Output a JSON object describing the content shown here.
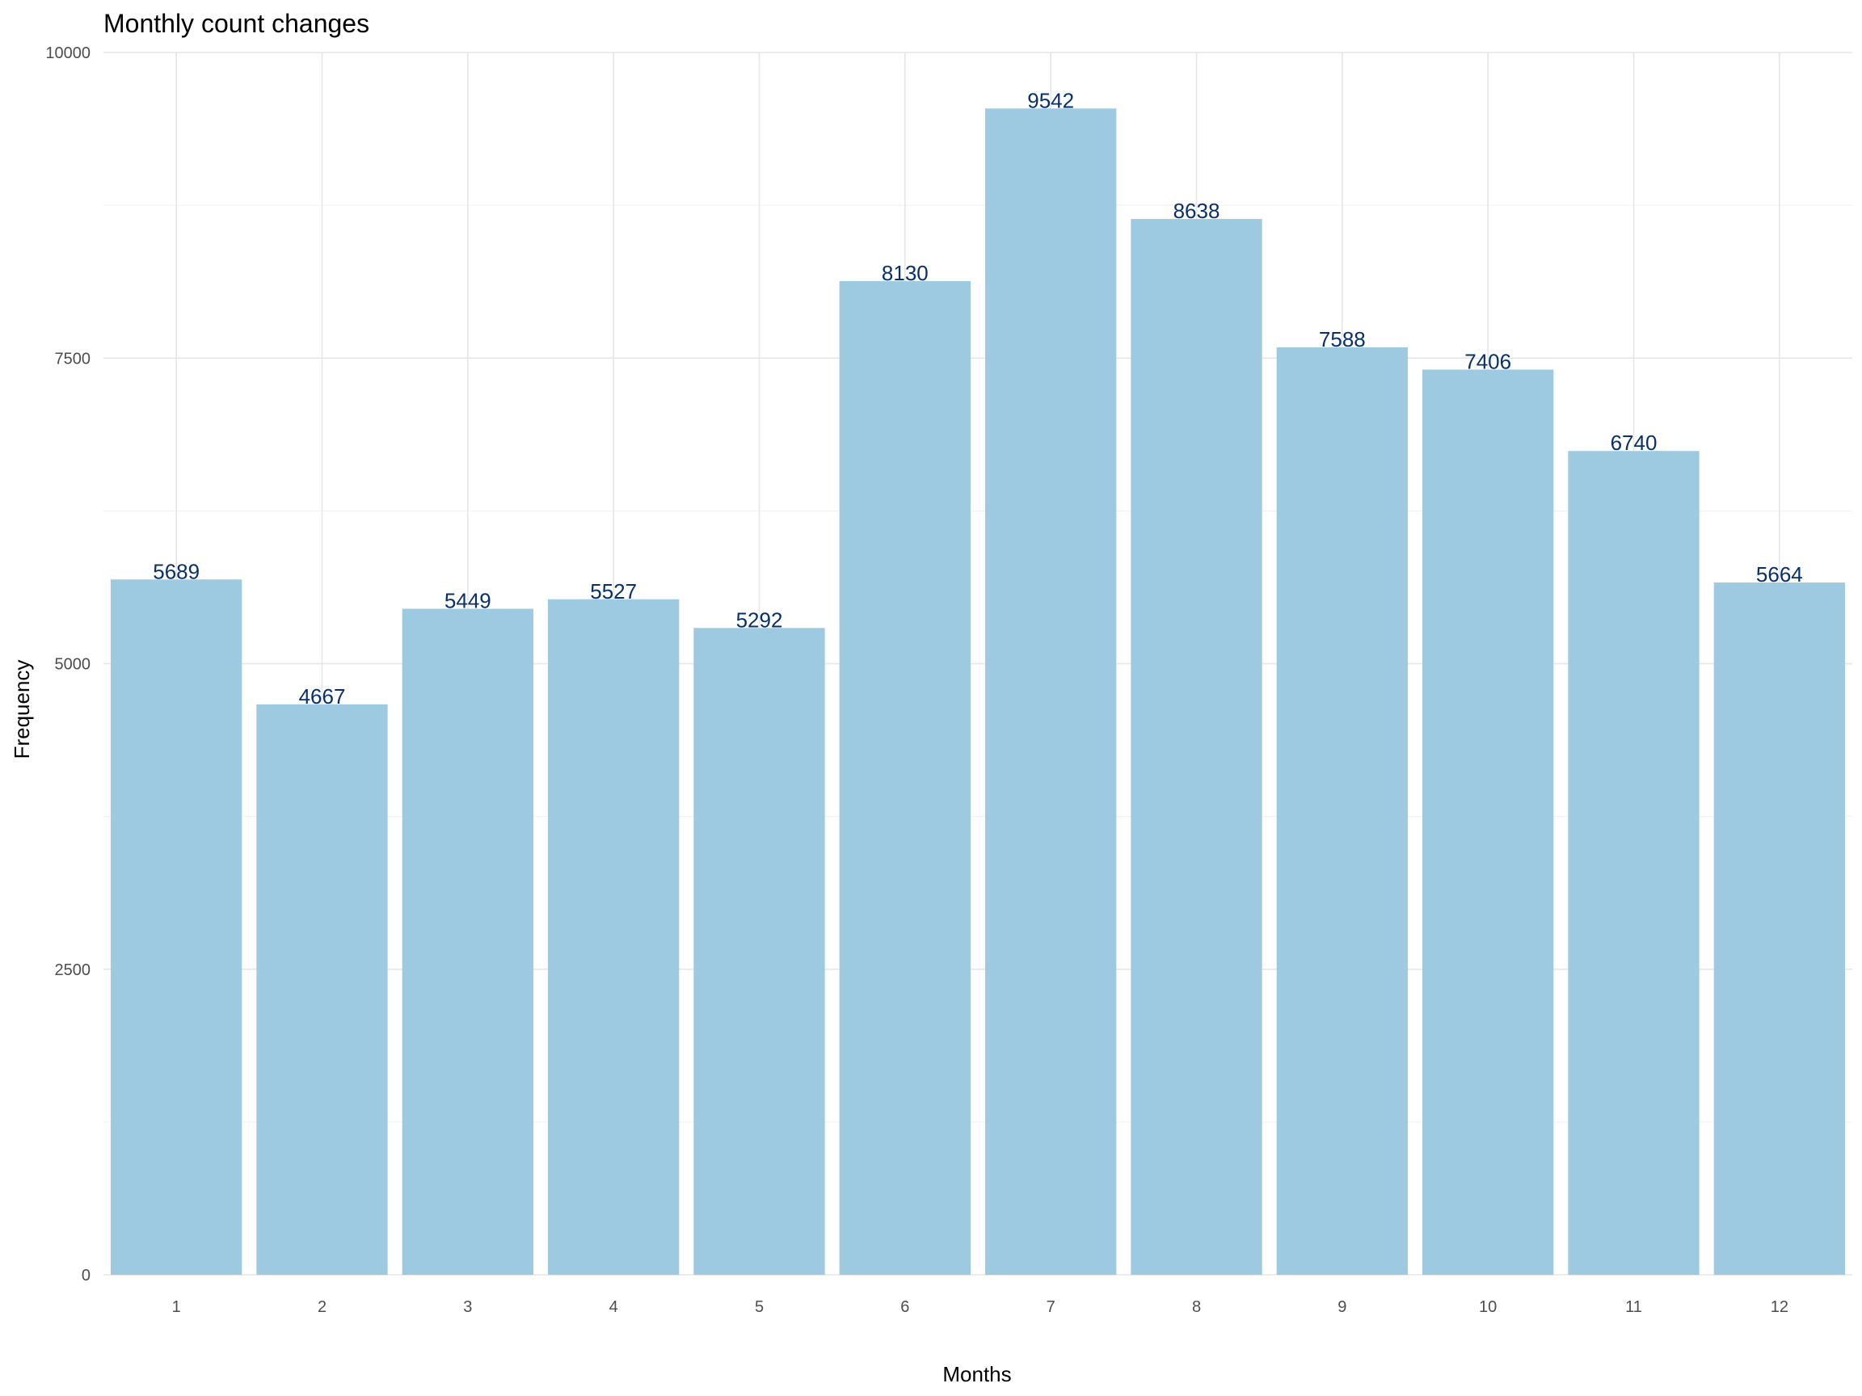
{
  "chart_data": {
    "type": "bar",
    "title": "Monthly count changes",
    "xlabel": "Months",
    "ylabel": "Frequency",
    "categories": [
      "1",
      "2",
      "3",
      "4",
      "5",
      "6",
      "7",
      "8",
      "9",
      "10",
      "11",
      "12"
    ],
    "values": [
      5689,
      4667,
      5449,
      5527,
      5292,
      8130,
      9542,
      8638,
      7588,
      7406,
      6740,
      5664
    ],
    "ylim": [
      0,
      10000
    ],
    "yticks": [
      0,
      2500,
      5000,
      7500,
      10000
    ],
    "ytick_labels": [
      "0",
      "2500",
      "5000",
      "7500",
      "10000"
    ],
    "grid": true,
    "legend": "none",
    "colors": {
      "bar": "#9ecae1",
      "data_label": "#08306b"
    }
  }
}
